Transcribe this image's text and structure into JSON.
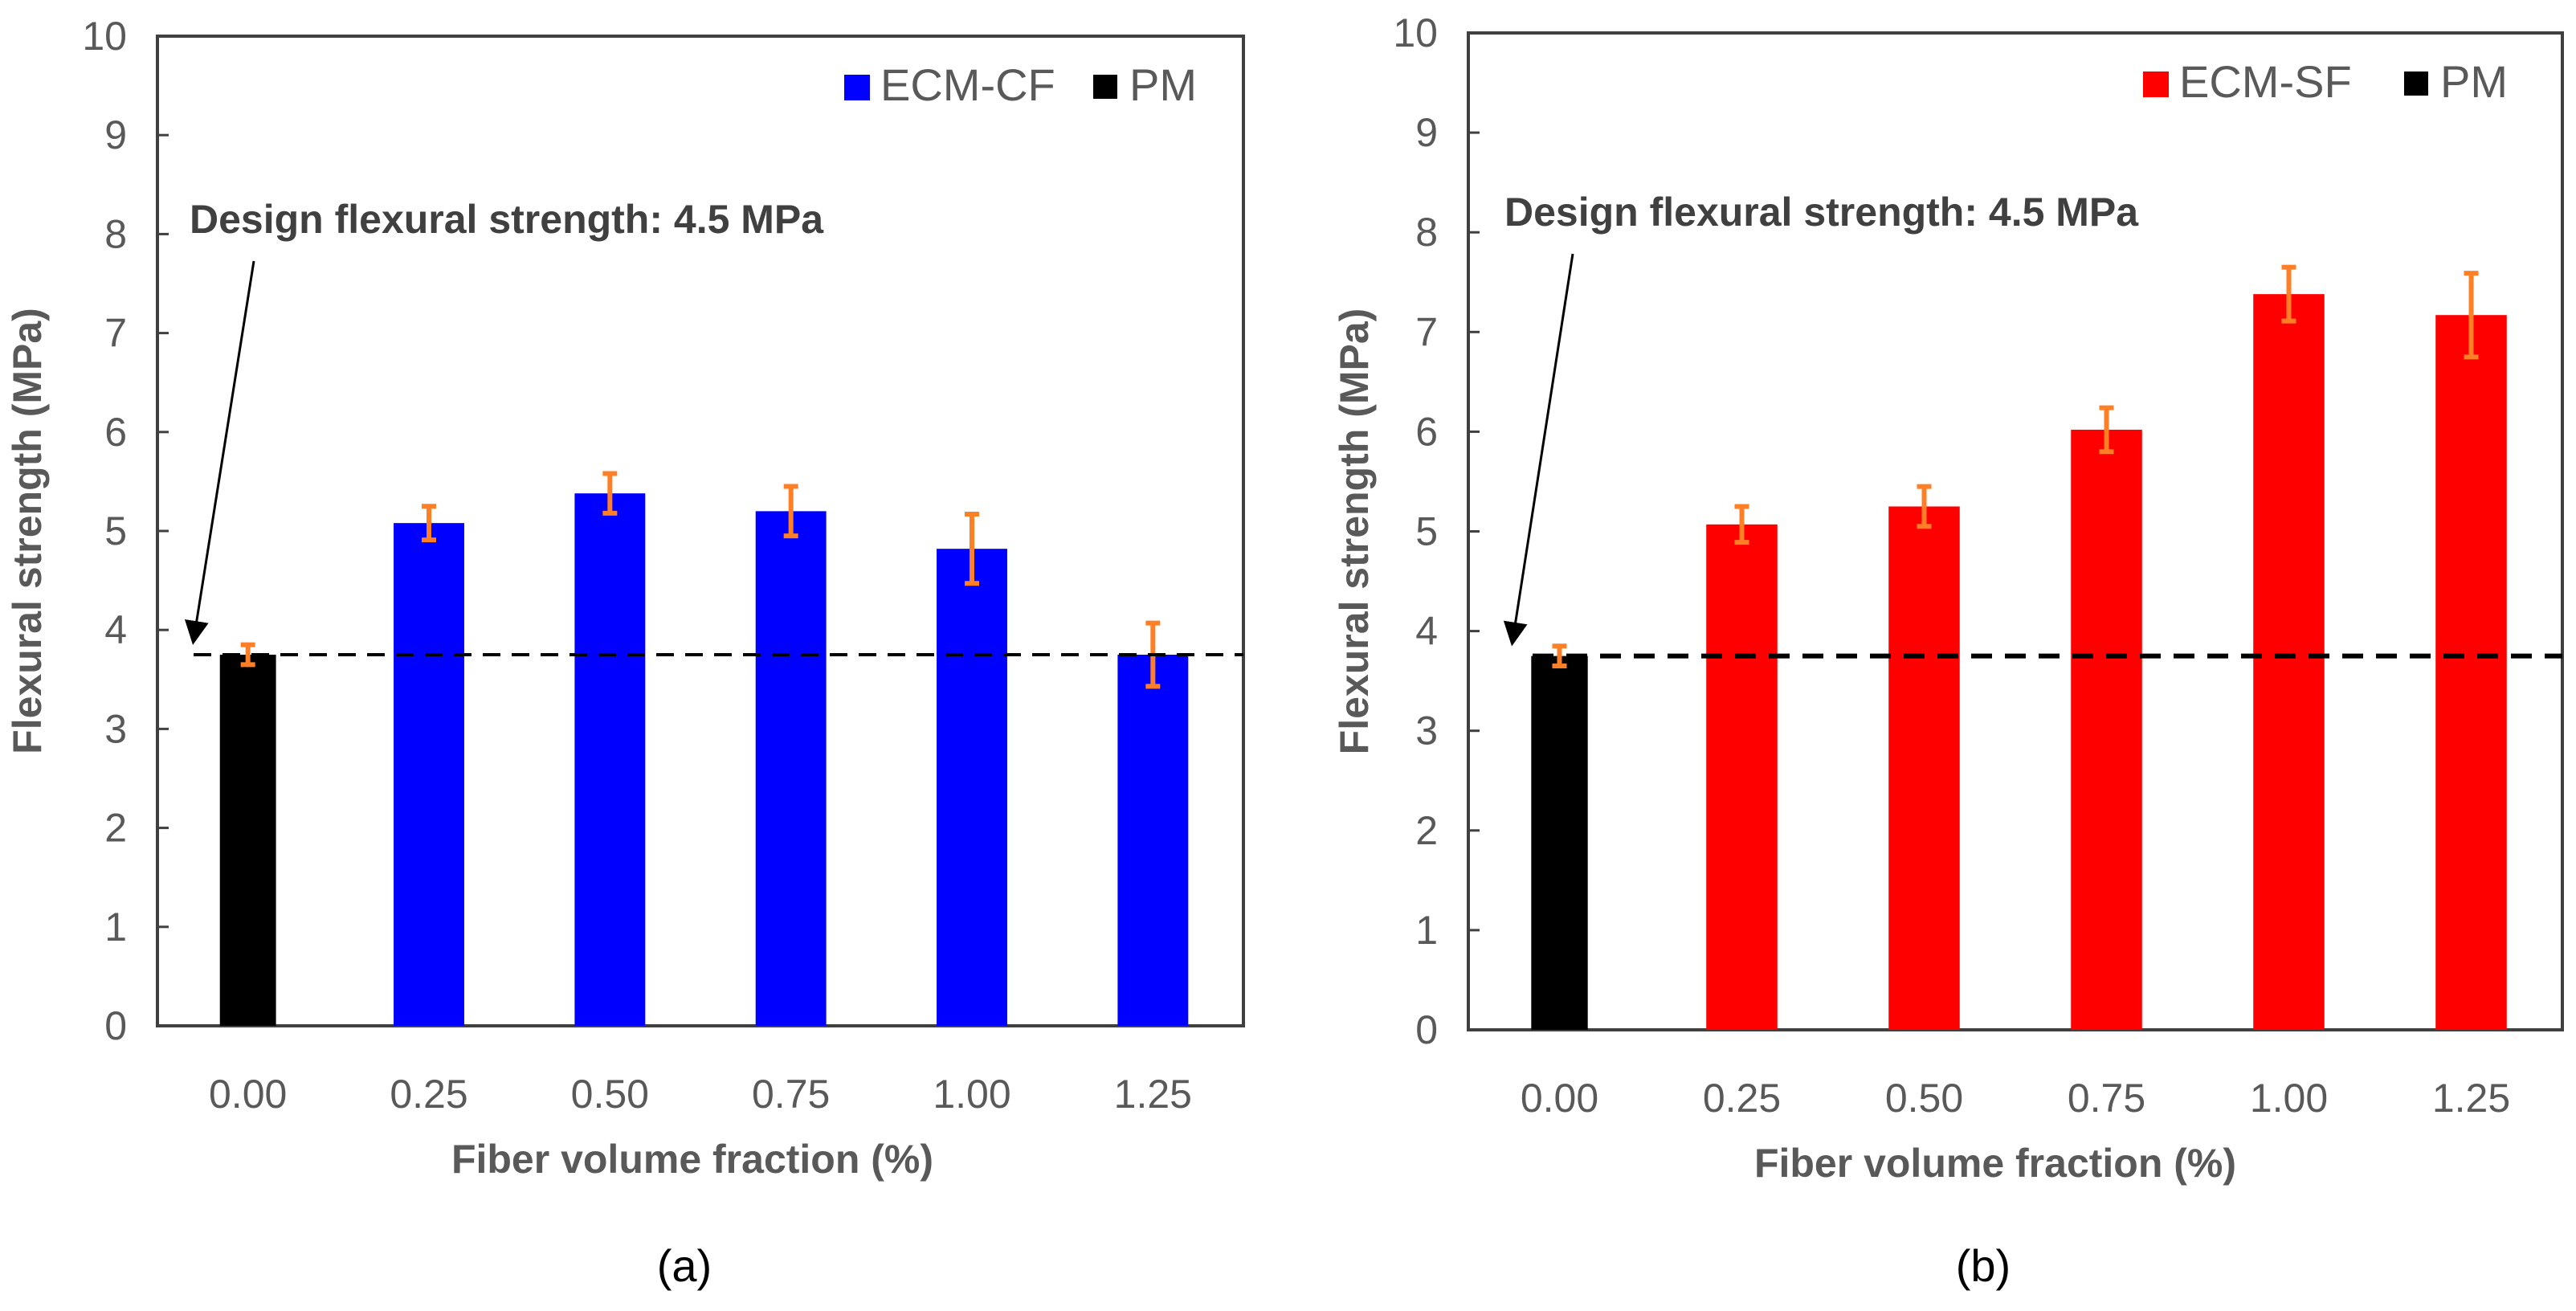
{
  "chart_data": [
    {
      "type": "bar",
      "panel_label": "(a)",
      "categories": [
        "0.00",
        "0.25",
        "0.50",
        "0.75",
        "1.00",
        "1.25"
      ],
      "series": [
        {
          "name": "ECM-CF",
          "color": "#0000FF",
          "values": [
            null,
            5.08,
            5.38,
            5.2,
            4.82,
            3.75
          ],
          "errors": [
            null,
            0.17,
            0.2,
            0.25,
            0.35,
            0.32
          ]
        },
        {
          "name": "PM",
          "color": "#000000",
          "values": [
            3.75,
            null,
            null,
            null,
            null,
            null
          ],
          "errors": [
            0.1,
            null,
            null,
            null,
            null,
            null
          ]
        }
      ],
      "error_color": "#FF7F27",
      "reference_line": 3.75,
      "annotation": "Design flexural strength: 4.5 MPa",
      "xlabel": "Fiber volume fraction  (%)",
      "ylabel": "Flexural strength (MPa)",
      "ylim": [
        0,
        10
      ],
      "yticks": [
        "0",
        "1",
        "2",
        "3",
        "4",
        "5",
        "6",
        "7",
        "8",
        "9",
        "10"
      ],
      "legend": "top-right"
    },
    {
      "type": "bar",
      "panel_label": "(b)",
      "categories": [
        "0.00",
        "0.25",
        "0.50",
        "0.75",
        "1.00",
        "1.25"
      ],
      "series": [
        {
          "name": "ECM-SF",
          "color": "#FF0000",
          "values": [
            null,
            5.07,
            5.25,
            6.02,
            7.38,
            7.17
          ],
          "errors": [
            null,
            0.18,
            0.2,
            0.22,
            0.27,
            0.42
          ]
        },
        {
          "name": "PM",
          "color": "#000000",
          "values": [
            3.75,
            null,
            null,
            null,
            null,
            null
          ],
          "errors": [
            0.1,
            null,
            null,
            null,
            null,
            null
          ]
        }
      ],
      "error_color": "#FF7F27",
      "reference_line": 3.75,
      "annotation": "Design flexural strength: 4.5 MPa",
      "xlabel": "Fiber volume fraction (%)",
      "ylabel": "Flexural strength (MPa)",
      "ylim": [
        0,
        10
      ],
      "yticks": [
        "0",
        "1",
        "2",
        "3",
        "4",
        "5",
        "6",
        "7",
        "8",
        "9",
        "10"
      ],
      "legend": "top-right"
    }
  ]
}
